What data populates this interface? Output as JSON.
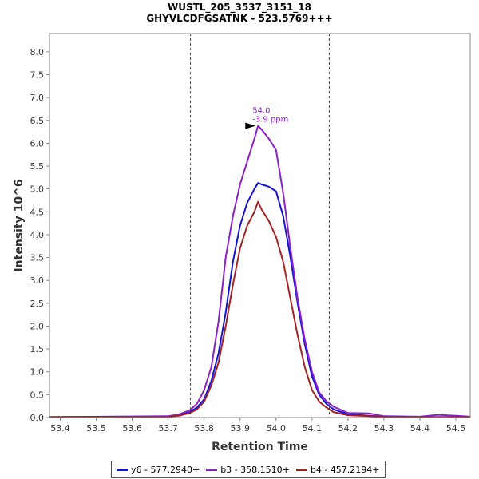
{
  "chart_data": {
    "type": "line",
    "title": "WUSTL_205_3537_3151_18",
    "subtitle": "GHYVLCDFGSATNK - 523.5769+++",
    "xlabel": "Retention Time",
    "ylabel": "Intensity 10^6",
    "xlim": [
      53.37,
      54.54
    ],
    "ylim": [
      0,
      8.4
    ],
    "xticks": [
      "53.4",
      "53.5",
      "53.6",
      "53.7",
      "53.8",
      "53.9",
      "54.0",
      "54.1",
      "54.2",
      "54.3",
      "54.4",
      "54.5"
    ],
    "yticks": [
      "0.0",
      "0.5",
      "1.0",
      "1.5",
      "2.0",
      "2.5",
      "3.0",
      "3.5",
      "4.0",
      "4.5",
      "5.0",
      "5.5",
      "6.0",
      "6.5",
      "7.0",
      "7.5",
      "8.0"
    ],
    "boundaries": [
      53.762,
      54.148
    ],
    "annotation": {
      "line1": "54.0",
      "line2": "-3.9 ppm",
      "x": 53.95,
      "y": 6.38,
      "color": "#8c1fc8"
    },
    "legend_position": "bottom",
    "series": [
      {
        "name": "y6 - 577.2940+",
        "color": "#1414d2",
        "x": [
          53.37,
          53.7,
          53.73,
          53.76,
          53.78,
          53.8,
          53.82,
          53.84,
          53.86,
          53.88,
          53.9,
          53.92,
          53.94,
          53.95,
          53.96,
          53.98,
          54.0,
          54.02,
          54.04,
          54.06,
          54.08,
          54.1,
          54.12,
          54.14,
          54.16,
          54.2,
          54.26,
          54.3,
          54.4,
          54.45,
          54.5,
          54.54
        ],
        "y": [
          0.01,
          0.02,
          0.05,
          0.12,
          0.22,
          0.4,
          0.8,
          1.4,
          2.3,
          3.4,
          4.2,
          4.7,
          5.0,
          5.13,
          5.1,
          5.05,
          4.95,
          4.4,
          3.5,
          2.5,
          1.6,
          0.9,
          0.5,
          0.3,
          0.18,
          0.07,
          0.04,
          0.02,
          0.01,
          0.01,
          0.01,
          0.01
        ]
      },
      {
        "name": "b3 - 358.1510+",
        "color": "#8c1fc8",
        "x": [
          53.37,
          53.7,
          53.73,
          53.76,
          53.78,
          53.8,
          53.82,
          53.84,
          53.86,
          53.88,
          53.9,
          53.92,
          53.94,
          53.95,
          53.96,
          53.98,
          54.0,
          54.02,
          54.04,
          54.06,
          54.08,
          54.1,
          54.12,
          54.14,
          54.16,
          54.2,
          54.26,
          54.3,
          54.4,
          54.45,
          54.5,
          54.54
        ],
        "y": [
          0.01,
          0.03,
          0.07,
          0.16,
          0.3,
          0.6,
          1.1,
          2.1,
          3.5,
          4.4,
          5.1,
          5.6,
          6.1,
          6.38,
          6.3,
          6.1,
          5.85,
          4.9,
          3.7,
          2.6,
          1.7,
          1.0,
          0.55,
          0.36,
          0.24,
          0.1,
          0.09,
          0.03,
          0.02,
          0.06,
          0.04,
          0.02
        ]
      },
      {
        "name": "b4 - 457.2194+",
        "color": "#a42222",
        "x": [
          53.37,
          53.7,
          53.73,
          53.76,
          53.78,
          53.8,
          53.82,
          53.84,
          53.86,
          53.88,
          53.9,
          53.92,
          53.94,
          53.95,
          53.96,
          53.98,
          54.0,
          54.02,
          54.04,
          54.06,
          54.08,
          54.1,
          54.12,
          54.14,
          54.16,
          54.2,
          54.26,
          54.3,
          54.4,
          54.45,
          54.5,
          54.54
        ],
        "y": [
          0.01,
          0.02,
          0.04,
          0.1,
          0.18,
          0.35,
          0.7,
          1.2,
          2.0,
          2.9,
          3.7,
          4.2,
          4.5,
          4.72,
          4.55,
          4.3,
          3.95,
          3.4,
          2.6,
          1.8,
          1.1,
          0.6,
          0.35,
          0.22,
          0.12,
          0.05,
          0.03,
          0.02,
          0.01,
          0.01,
          0.01,
          0.01
        ]
      }
    ]
  }
}
